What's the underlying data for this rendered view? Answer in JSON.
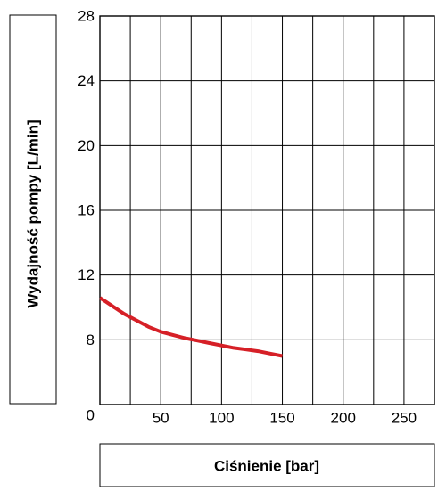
{
  "chart_data": {
    "type": "line",
    "xlabel": "Ciśnienie [bar]",
    "ylabel": "Wydajność pompy [L/min]",
    "xlim": [
      0,
      275
    ],
    "ylim": [
      4,
      28
    ],
    "x_tick_labels": [
      "50",
      "100",
      "150",
      "200",
      "250"
    ],
    "y_tick_labels": [
      "28",
      "24",
      "20",
      "16",
      "12",
      "8"
    ],
    "origin_label": "0",
    "grid": true,
    "series": [
      {
        "color": "#d62027",
        "x": [
          0,
          10,
          20,
          30,
          40,
          50,
          60,
          70,
          80,
          90,
          100,
          110,
          120,
          130,
          140,
          150
        ],
        "y": [
          10.6,
          10.1,
          9.6,
          9.2,
          8.8,
          8.5,
          8.3,
          8.1,
          7.95,
          7.8,
          7.65,
          7.5,
          7.4,
          7.3,
          7.15,
          7.0
        ]
      }
    ]
  }
}
